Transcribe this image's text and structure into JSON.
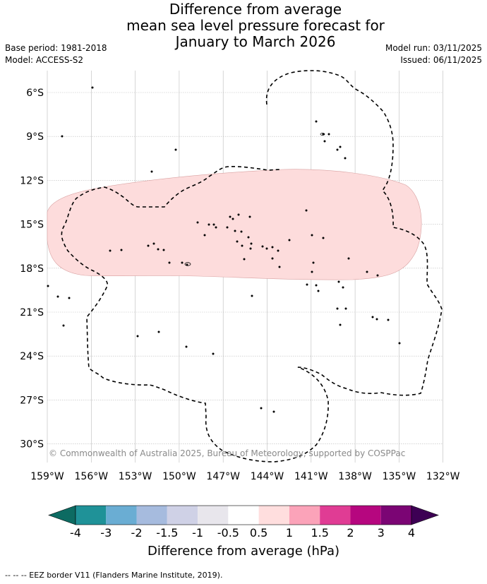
{
  "title": {
    "line1": "Difference from average",
    "line2": "mean sea level pressure forecast for",
    "line3": "January to March 2026"
  },
  "meta": {
    "base_period": "Base period: 1981-2018",
    "model": "Model: ACCESS-S2",
    "model_run": "Model run: 03/11/2025",
    "issued": "Issued: 06/11/2025"
  },
  "map": {
    "lat_labels": [
      "6°S",
      "9°S",
      "12°S",
      "15°S",
      "18°S",
      "21°S",
      "24°S",
      "27°S",
      "30°S"
    ],
    "lon_labels": [
      "159°W",
      "156°W",
      "153°W",
      "150°W",
      "147°W",
      "144°W",
      "141°W",
      "138°W",
      "135°W",
      "132°W"
    ],
    "copyright": "© Commonwealth of Australia 2025, Bureau of Meteorology, supported by COSPPac",
    "anomaly_region_value": "0.5 to 1 hPa",
    "colors": {
      "anomaly_fill": "#fddcdc",
      "grid": "#bbbbbb",
      "coast": "#000000"
    }
  },
  "colorbar": {
    "ticks": [
      "-4",
      "-3",
      "-2",
      "-1.5",
      "-1",
      "-0.5",
      "0.5",
      "1",
      "1.5",
      "2",
      "3",
      "4"
    ],
    "colors": [
      "#0d6b62",
      "#1f9298",
      "#6aadd3",
      "#a6bbde",
      "#cfd1e6",
      "#e8e6ec",
      "#ffffff",
      "#ffdede",
      "#fba3b9",
      "#e03c94",
      "#b6067f",
      "#7b0574",
      "#3d0054"
    ],
    "title": "Difference from average (hPa)"
  },
  "footer": "-- -- -- EEZ border V11 (Flanders Marine Institute, 2019)."
}
